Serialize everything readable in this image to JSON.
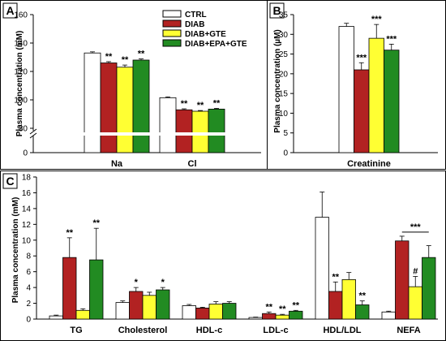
{
  "colors": {
    "series": [
      "#ffffff",
      "#b22222",
      "#ffff33",
      "#228b22"
    ],
    "stroke": "#000000"
  },
  "legend": [
    "CTRL",
    "DIAB",
    "DIAB+GTE",
    "DIAB+EPA+GTE"
  ],
  "chart_data": [
    {
      "panel": "A",
      "type": "bar",
      "ylabel": "Plasma concentration (mM)",
      "axis_break": true,
      "yticks": [
        0,
        80,
        100,
        120,
        140,
        160
      ],
      "categories": [
        "Na",
        "Cl"
      ],
      "series": [
        {
          "name": "CTRL",
          "values": [
            133,
            101.5
          ],
          "errors": [
            0.8,
            0.6
          ]
        },
        {
          "name": "DIAB",
          "values": [
            126,
            93
          ],
          "errors": [
            0.9,
            0.7
          ]
        },
        {
          "name": "DIAB+GTE",
          "values": [
            123,
            92
          ],
          "errors": [
            1.5,
            0.5
          ]
        },
        {
          "name": "DIAB+EPA+GTE",
          "values": [
            128,
            93.5
          ],
          "errors": [
            0.8,
            0.5
          ]
        }
      ],
      "annotations": [
        {
          "category": 0,
          "series": 1,
          "text": "**"
        },
        {
          "category": 0,
          "series": 2,
          "text": "**"
        },
        {
          "category": 0,
          "series": 3,
          "text": "**"
        },
        {
          "category": 1,
          "series": 1,
          "text": "**"
        },
        {
          "category": 1,
          "series": 2,
          "text": "**"
        },
        {
          "category": 1,
          "series": 3,
          "text": "**"
        }
      ]
    },
    {
      "panel": "B",
      "type": "bar",
      "ylabel": "Plasma concentration (µM)",
      "ylim": [
        0,
        35
      ],
      "yticks": [
        0,
        5,
        10,
        15,
        20,
        25,
        30,
        35
      ],
      "categories": [
        "Creatinine"
      ],
      "series": [
        {
          "name": "CTRL",
          "values": [
            32
          ],
          "errors": [
            0.8
          ]
        },
        {
          "name": "DIAB",
          "values": [
            21
          ],
          "errors": [
            1.8
          ]
        },
        {
          "name": "DIAB+GTE",
          "values": [
            29
          ],
          "errors": [
            3.5
          ]
        },
        {
          "name": "DIAB+EPA+GTE",
          "values": [
            26
          ],
          "errors": [
            1.5
          ]
        }
      ],
      "annotations": [
        {
          "category": 0,
          "series": 1,
          "text": "***"
        },
        {
          "category": 0,
          "series": 2,
          "text": "***"
        },
        {
          "category": 0,
          "series": 3,
          "text": "***"
        }
      ]
    },
    {
      "panel": "C",
      "type": "bar",
      "ylabel": "Plasma concentration (mM)",
      "ylim": [
        0,
        18
      ],
      "yticks": [
        0,
        2,
        4,
        6,
        8,
        10,
        12,
        14,
        16,
        18
      ],
      "categories": [
        "TG",
        "Cholesterol",
        "HDL-c",
        "LDL-c",
        "HDL/LDL",
        "NEFA"
      ],
      "series": [
        {
          "name": "CTRL",
          "values": [
            0.4,
            2.1,
            1.7,
            0.2,
            12.9,
            0.9
          ],
          "errors": [
            0.1,
            0.2,
            0.15,
            0.05,
            3.2,
            0.1
          ]
        },
        {
          "name": "DIAB",
          "values": [
            7.8,
            3.5,
            1.4,
            0.7,
            3.5,
            9.9
          ],
          "errors": [
            2.5,
            0.5,
            0.1,
            0.2,
            1.2,
            0.6
          ]
        },
        {
          "name": "DIAB+GTE",
          "values": [
            1.1,
            3.0,
            1.9,
            0.5,
            5.0,
            4.1
          ],
          "errors": [
            0.2,
            0.4,
            0.3,
            0.1,
            0.9,
            1.3
          ]
        },
        {
          "name": "DIAB+EPA+GTE",
          "values": [
            7.5,
            3.7,
            2.0,
            1.0,
            1.8,
            7.8
          ],
          "errors": [
            4.0,
            0.3,
            0.2,
            0.1,
            0.5,
            1.5
          ]
        }
      ],
      "annotations": [
        {
          "category": 0,
          "series": 1,
          "text": "**"
        },
        {
          "category": 0,
          "series": 3,
          "text": "**"
        },
        {
          "category": 1,
          "series": 1,
          "text": "*"
        },
        {
          "category": 1,
          "series": 3,
          "text": "*"
        },
        {
          "category": 3,
          "series": 1,
          "text": "**"
        },
        {
          "category": 3,
          "series": 2,
          "text": "**"
        },
        {
          "category": 3,
          "series": 3,
          "text": "**"
        },
        {
          "category": 4,
          "series": 1,
          "text": "**"
        },
        {
          "category": 4,
          "series": 3,
          "text": "**"
        },
        {
          "category": 5,
          "series": 2,
          "text": "#"
        }
      ],
      "bracket_annotations": [
        {
          "category": 5,
          "text": "***"
        }
      ]
    }
  ]
}
